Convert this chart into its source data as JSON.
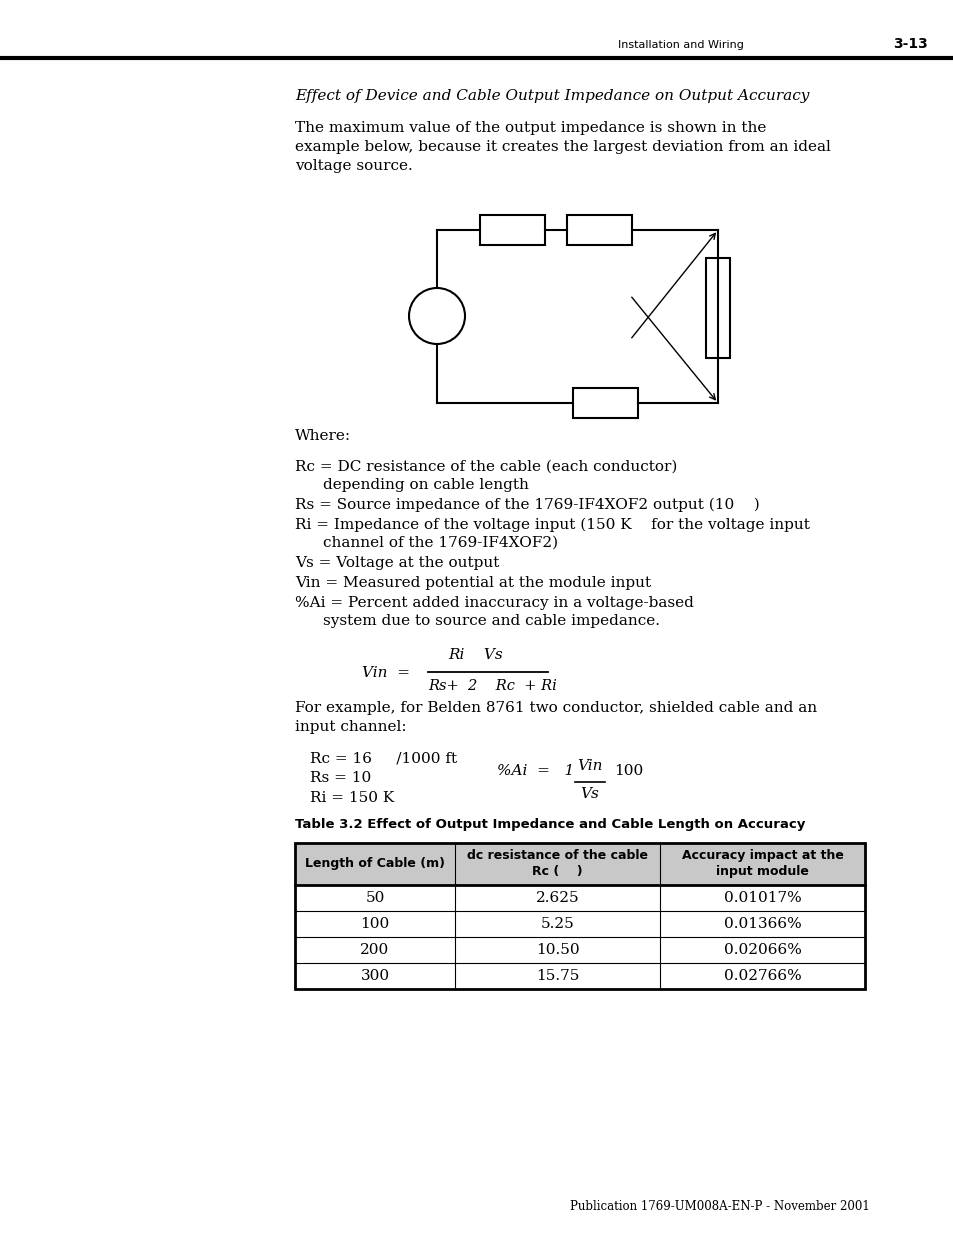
{
  "page_header_left": "Installation and Wiring",
  "page_header_right": "3-13",
  "section_title": "Effect of Device and Cable Output Impedance on Output Accuracy",
  "intro_text": [
    "The maximum value of the output impedance is shown in the",
    "example below, because it creates the largest deviation from an ideal",
    "voltage source."
  ],
  "where_text": "Where:",
  "definitions": [
    {
      "label": "Rc",
      "text": " = DC resistance of the cable (each conductor)",
      "indent_text": "depending on cable length",
      "has_indent": true
    },
    {
      "label": "Rs",
      "text": " = Source impedance of the 1769-IF4XOF2 output (10    )",
      "has_indent": false
    },
    {
      "label": "Ri",
      "text": " = Impedance of the voltage input (150 K    for the voltage input",
      "indent_text": "channel of the 1769-IF4XOF2)",
      "has_indent": true
    },
    {
      "label": "Vs",
      "text": " = Voltage at the output",
      "has_indent": false
    },
    {
      "label": "Vin",
      "text": " = Measured potential at the module input",
      "has_indent": false
    },
    {
      "label": "%Ai",
      "text": " = Percent added inaccuracy in a voltage-based",
      "indent_text": "system due to source and cable impedance.",
      "has_indent": true
    }
  ],
  "table_title": "Table 3.2 Effect of Output Impedance and Cable Length on Accuracy",
  "table_headers": [
    "Length of Cable (m)",
    "dc resistance of the cable\nRc (    )",
    "Accuracy impact at the\ninput module"
  ],
  "table_rows": [
    [
      "50",
      "2.625",
      "0.01017%"
    ],
    [
      "100",
      "5.25",
      "0.01366%"
    ],
    [
      "200",
      "10.50",
      "0.02066%"
    ],
    [
      "300",
      "15.75",
      "0.02766%"
    ]
  ],
  "footer_text": "Publication 1769-UM008A-EN-P - November 2001",
  "background_color": "#ffffff",
  "text_color": "#000000"
}
